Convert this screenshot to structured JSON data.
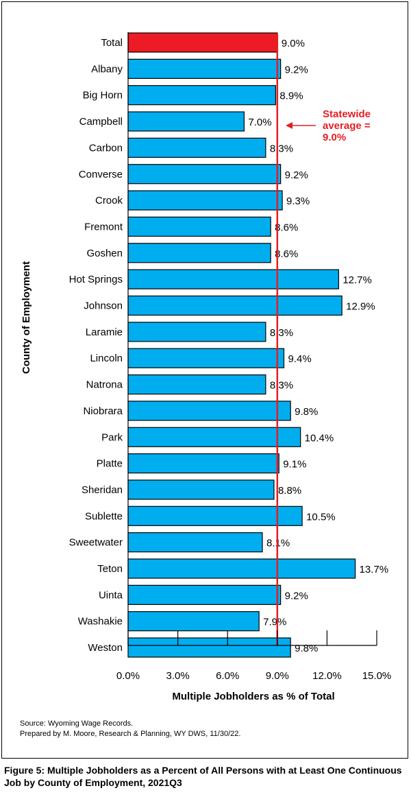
{
  "chart_data": {
    "type": "bar",
    "orientation": "horizontal",
    "categories": [
      "Total",
      "Albany",
      "Big Horn",
      "Campbell",
      "Carbon",
      "Converse",
      "Crook",
      "Fremont",
      "Goshen",
      "Hot Springs",
      "Johnson",
      "Laramie",
      "Lincoln",
      "Natrona",
      "Niobrara",
      "Park",
      "Platte",
      "Sheridan",
      "Sublette",
      "Sweetwater",
      "Teton",
      "Uinta",
      "Washakie",
      "Weston"
    ],
    "values": [
      9.0,
      9.2,
      8.9,
      7.0,
      8.3,
      9.2,
      9.3,
      8.6,
      8.6,
      12.7,
      12.9,
      8.3,
      9.4,
      8.3,
      9.8,
      10.4,
      9.1,
      8.8,
      10.5,
      8.1,
      13.7,
      9.2,
      7.9,
      9.8
    ],
    "value_labels": [
      "9.0%",
      "9.2%",
      "8.9%",
      "7.0%",
      "8.3%",
      "9.2%",
      "9.3%",
      "8.6%",
      "8.6%",
      "12.7%",
      "12.9%",
      "8.3%",
      "9.4%",
      "8.3%",
      "9.8%",
      "10.4%",
      "9.1%",
      "8.8%",
      "10.5%",
      "8.1%",
      "13.7%",
      "9.2%",
      "7.9%",
      "9.8%"
    ],
    "xlim": [
      0,
      15
    ],
    "x_ticks": [
      "0.0%",
      "3.0%",
      "6.0%",
      "9.0%",
      "12.0%",
      "15.0%"
    ],
    "xlabel": "Multiple Jobholders as % of Total",
    "ylabel": "County of Employment",
    "reference_line": {
      "value": 9.0,
      "color": "#e31e24",
      "annotation": [
        "Statewide",
        "average =",
        "9.0%"
      ]
    },
    "colors": {
      "bar": "#00aeef",
      "highlight": "#ed1c24",
      "reference": "#e31e24"
    },
    "highlight_category": "Total",
    "grid": false
  },
  "source_lines": [
    "Source: Wyoming Wage Records.",
    "Prepared by M. Moore, Research & Planning, WY DWS, 11/30/22."
  ],
  "caption": "Figure 5: Multiple Jobholders as a Percent of All Persons with at Least One Continuous Job by County of Employment, 2021Q3"
}
